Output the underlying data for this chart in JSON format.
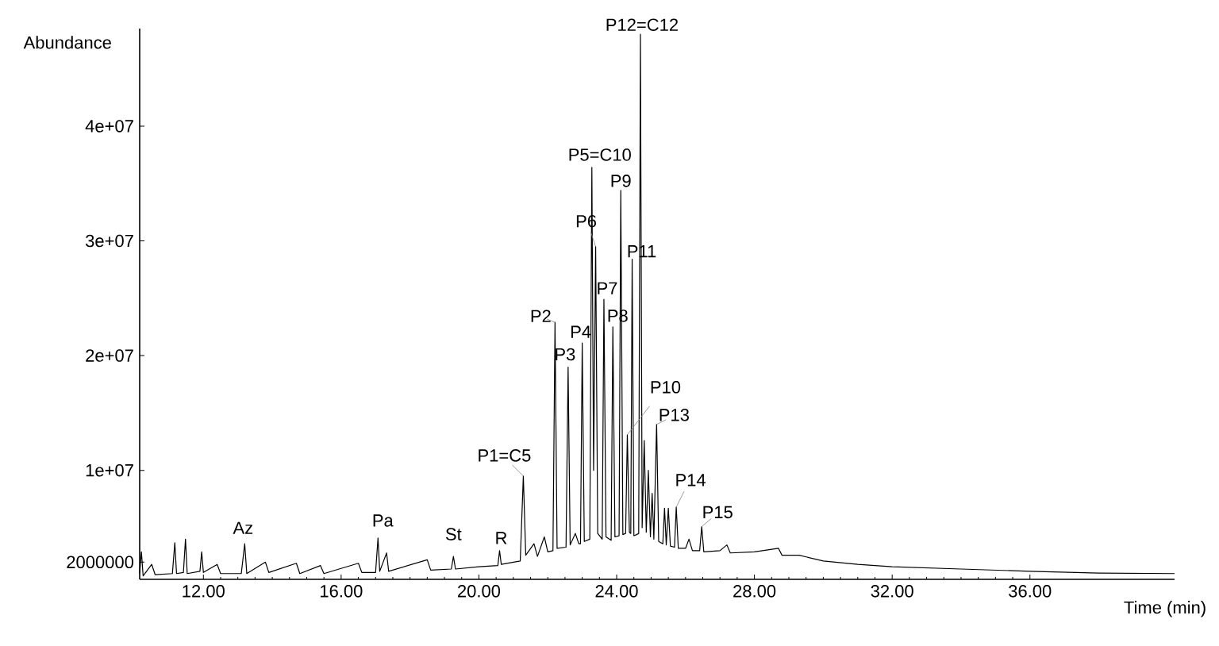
{
  "chart_data": {
    "type": "line",
    "xlabel": "Time (min)",
    "ylabel": "Abundance",
    "xlim": [
      10.15,
      40.2
    ],
    "ylim": [
      500000,
      48500000
    ],
    "xticks": [
      {
        "value": 12,
        "label": "12.00"
      },
      {
        "value": 16,
        "label": "16.00"
      },
      {
        "value": 20,
        "label": "20.00"
      },
      {
        "value": 24,
        "label": "24.00"
      },
      {
        "value": 28,
        "label": "28.00"
      },
      {
        "value": 32,
        "label": "32.00"
      },
      {
        "value": 36,
        "label": "36.00"
      }
    ],
    "yticks": [
      2000000,
      {
        "value": 10000000,
        "label": "1e+07"
      },
      {
        "value": 20000000,
        "label": "2e+07"
      },
      {
        "value": 30000000,
        "label": "3e+07"
      },
      {
        "value": 40000000,
        "label": "4e+07"
      }
    ],
    "x": [
      10.15,
      10.2,
      10.25,
      10.5,
      10.6,
      11.1,
      11.17,
      11.22,
      11.42,
      11.48,
      11.53,
      11.9,
      11.95,
      12.0,
      12.4,
      12.5,
      13.1,
      13.2,
      13.26,
      13.8,
      13.9,
      14.7,
      14.8,
      15.4,
      15.5,
      16.5,
      16.6,
      17.0,
      17.07,
      17.12,
      17.32,
      17.38,
      18.5,
      18.6,
      19.2,
      19.26,
      19.32,
      20.0,
      20.55,
      20.6,
      20.65,
      21.2,
      21.29,
      21.36,
      21.6,
      21.7,
      21.9,
      22.0,
      22.15,
      22.21,
      22.27,
      22.53,
      22.59,
      22.65,
      22.8,
      22.9,
      22.95,
      23.0,
      23.06,
      23.22,
      23.28,
      23.33,
      23.39,
      23.45,
      23.58,
      23.63,
      23.69,
      23.84,
      23.89,
      23.95,
      24.07,
      24.12,
      24.18,
      24.26,
      24.31,
      24.37,
      24.41,
      24.45,
      24.5,
      24.58,
      24.64,
      24.69,
      24.74,
      24.8,
      24.86,
      24.92,
      24.98,
      25.03,
      25.08,
      25.16,
      25.22,
      25.34,
      25.39,
      25.44,
      25.5,
      25.56,
      25.68,
      25.73,
      25.79,
      26.0,
      26.1,
      26.2,
      26.41,
      26.47,
      26.53,
      27.0,
      27.2,
      27.3,
      28.0,
      28.7,
      28.8,
      29.3,
      30.0,
      31.0,
      32.0,
      34.0,
      36.0,
      38.0,
      40.2
    ],
    "series": [
      {
        "color": "#000000",
        "values": [
          1000000,
          2900000,
          800000,
          1800000,
          900000,
          1000000,
          3700000,
          1000000,
          1100000,
          4000000,
          1000000,
          1200000,
          2900000,
          1100000,
          1800000,
          1000000,
          1000000,
          3600000,
          1000000,
          2000000,
          1100000,
          1900000,
          1000000,
          1700000,
          1000000,
          1900000,
          1100000,
          1100000,
          4100000,
          1200000,
          2800000,
          1200000,
          2200000,
          1300000,
          1400000,
          2500000,
          1400000,
          1600000,
          1700000,
          3000000,
          1800000,
          2100000,
          9500000,
          2600000,
          3600000,
          2500000,
          4200000,
          2900000,
          3000000,
          22900000,
          3200000,
          3300000,
          19000000,
          3500000,
          4500000,
          3600000,
          3600000,
          21100000,
          3800000,
          4000000,
          36400000,
          10000000,
          29500000,
          4500000,
          4000000,
          24900000,
          4200000,
          3900000,
          22500000,
          4200000,
          4300000,
          34400000,
          4400000,
          4500000,
          13100000,
          4600000,
          4500000,
          28400000,
          4300000,
          4400000,
          4500000,
          48000000,
          5000000,
          12600000,
          4600000,
          10000000,
          4200000,
          8000000,
          4000000,
          14000000,
          3800000,
          3600000,
          6700000,
          3500000,
          6700000,
          3400000,
          3300000,
          6800000,
          3200000,
          3200000,
          4000000,
          3000000,
          3000000,
          5100000,
          2900000,
          3000000,
          3500000,
          2800000,
          2900000,
          3200000,
          2600000,
          2600000,
          2100000,
          1800000,
          1600000,
          1400000,
          1200000,
          1050000,
          1000000
        ]
      }
    ],
    "annotations": [
      {
        "text": "Az",
        "x": 13.2,
        "y": 3600000
      },
      {
        "text": "Pa",
        "x": 17.07,
        "y": 4100000
      },
      {
        "text": "St",
        "x": 19.26,
        "y": 2500000
      },
      {
        "text": "R",
        "x": 20.6,
        "y": 3000000
      },
      {
        "text": "P1=C5",
        "x": 21.29,
        "y": 9500000
      },
      {
        "text": "P2",
        "x": 22.21,
        "y": 22900000
      },
      {
        "text": "P3",
        "x": 22.59,
        "y": 19000000
      },
      {
        "text": "P4",
        "x": 23.0,
        "y": 21100000
      },
      {
        "text": "P5=C10",
        "x": 23.28,
        "y": 36400000
      },
      {
        "text": "P6",
        "x": 23.39,
        "y": 29500000
      },
      {
        "text": "P7",
        "x": 23.63,
        "y": 24900000
      },
      {
        "text": "P8",
        "x": 23.89,
        "y": 22500000
      },
      {
        "text": "P9",
        "x": 24.12,
        "y": 34400000
      },
      {
        "text": "P10",
        "x": 24.31,
        "y": 13100000
      },
      {
        "text": "P11",
        "x": 24.45,
        "y": 28400000
      },
      {
        "text": "P12=C12",
        "x": 24.69,
        "y": 48000000
      },
      {
        "text": "P13",
        "x": 25.16,
        "y": 14000000
      },
      {
        "text": "P14",
        "x": 25.73,
        "y": 6800000
      },
      {
        "text": "P15",
        "x": 26.47,
        "y": 5100000
      }
    ]
  }
}
